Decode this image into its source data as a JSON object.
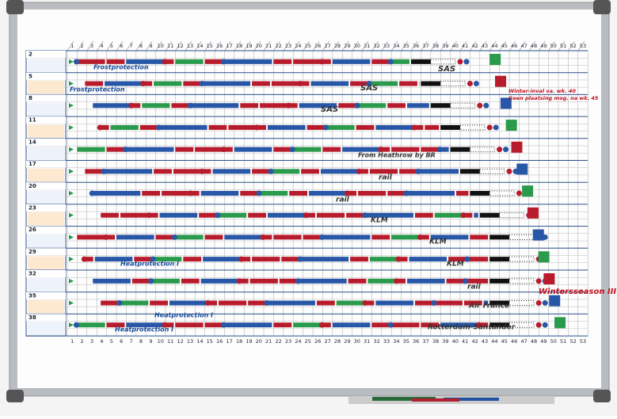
{
  "week_numbers_top": [
    1,
    2,
    3,
    4,
    5,
    6,
    7,
    8,
    9,
    10,
    11,
    12,
    13,
    14,
    15,
    16,
    17,
    18,
    19,
    20,
    21,
    22,
    23,
    24,
    25,
    26,
    27,
    28,
    29,
    30,
    31,
    32,
    33,
    34,
    35,
    36,
    37,
    38,
    39,
    40,
    41,
    42,
    43,
    44,
    45,
    46,
    47,
    48,
    49,
    50,
    51,
    52,
    53
  ],
  "week_numbers_bottom": [
    1,
    2,
    3,
    4,
    5,
    6,
    7,
    8,
    9,
    10,
    11,
    12,
    13,
    14,
    15,
    16,
    17,
    18,
    19,
    20,
    21,
    22,
    23,
    24,
    25,
    26,
    27,
    28,
    29,
    30,
    31,
    32,
    33,
    34,
    35,
    36,
    37,
    38,
    39,
    40,
    41,
    42,
    43,
    44,
    45,
    46,
    47,
    48,
    49,
    50,
    51,
    52,
    53
  ],
  "row_numbers": [
    2,
    5,
    8,
    11,
    14,
    17,
    20,
    23,
    26,
    29,
    32,
    35,
    38
  ],
  "annotations": [
    "Frostprotection",
    "Frostprotection",
    "SAS",
    "SAS",
    "SAS",
    "From Heathrow by BR",
    "rail",
    "rail",
    "KLM",
    "KLM",
    "KLM",
    "rail",
    "Air France",
    "Rotterdam-Santander",
    "Heatprotection I",
    "Heatprotection I",
    "Heatprotection I",
    "Wintersseason III",
    "Winter-inval va. wk. 40",
    "Geen plaatsing mog. na wk. 45"
  ]
}
